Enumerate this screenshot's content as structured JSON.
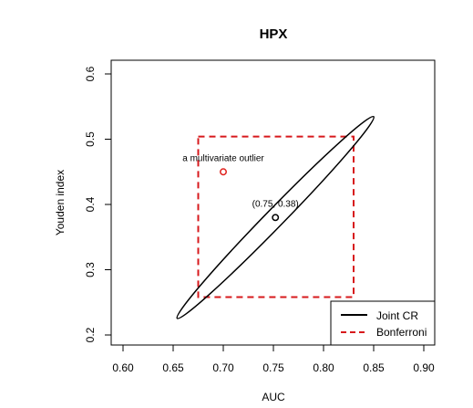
{
  "chart_data": {
    "type": "scatter",
    "title": "HPX",
    "xlabel": "AUC",
    "ylabel": "Youden index",
    "xlim": [
      0.6,
      0.9
    ],
    "ylim": [
      0.2,
      0.6
    ],
    "x_ticks": [
      "0.60",
      "0.65",
      "0.70",
      "0.75",
      "0.80",
      "0.85",
      "0.90"
    ],
    "y_ticks": [
      "0.2",
      "0.3",
      "0.4",
      "0.5",
      "0.6"
    ],
    "grid": false,
    "legend_position": "bottom-right",
    "points": [
      {
        "x": 0.752,
        "y": 0.38,
        "label": "(0.75, 0.38)",
        "color": "#000000"
      },
      {
        "x": 0.7,
        "y": 0.45,
        "label": "a multivariate outlier",
        "color": "#e0201c"
      }
    ],
    "joint_cr": {
      "name": "Joint CR",
      "color": "#000000",
      "line_style": "solid",
      "center": [
        0.752,
        0.38
      ],
      "major_axis_ends": [
        [
          0.851,
          0.534
        ],
        [
          0.655,
          0.225
        ]
      ],
      "minor_half_width_y": 0.02
    },
    "bonferroni": {
      "name": "Bonferroni",
      "color": "#d7191c",
      "line_style": "dashed",
      "x_range": [
        0.675,
        0.83
      ],
      "y_range": [
        0.258,
        0.504
      ]
    }
  }
}
